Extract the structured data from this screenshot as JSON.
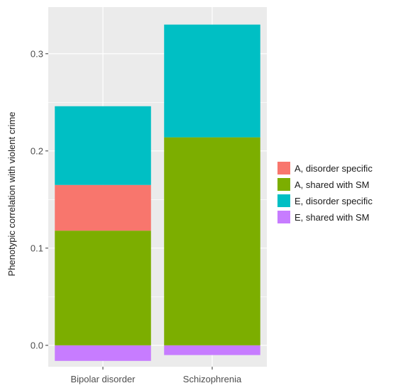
{
  "chart_data": {
    "type": "bar",
    "stacked": true,
    "title": "",
    "xlabel": "",
    "ylabel": "Phenotypic correlation with violent crime",
    "categories": [
      "Bipolar disorder",
      "Schizophrenia"
    ],
    "ylim": [
      -0.022,
      0.348
    ],
    "yticks": [
      0.0,
      0.1,
      0.2,
      0.3
    ],
    "ytick_labels": [
      "0.0",
      "0.1",
      "0.2",
      "0.3"
    ],
    "grid": true,
    "legend_position": "right",
    "series": [
      {
        "name": "A, disorder specific",
        "color": "#f8766d",
        "values": [
          0.047,
          0.0
        ]
      },
      {
        "name": "A, shared with SM",
        "color": "#7cae00",
        "values": [
          0.118,
          0.214
        ]
      },
      {
        "name": "E, disorder specific",
        "color": "#00bfc4",
        "values": [
          0.081,
          0.116
        ]
      },
      {
        "name": "E, shared with SM",
        "color": "#c77cff",
        "values": [
          -0.016,
          -0.01
        ]
      }
    ],
    "stack_order": [
      "E, shared with SM",
      "A, shared with SM",
      "A, disorder specific",
      "E, disorder specific"
    ],
    "panel_background": "#ebebeb",
    "grid_color": "#ffffff"
  }
}
